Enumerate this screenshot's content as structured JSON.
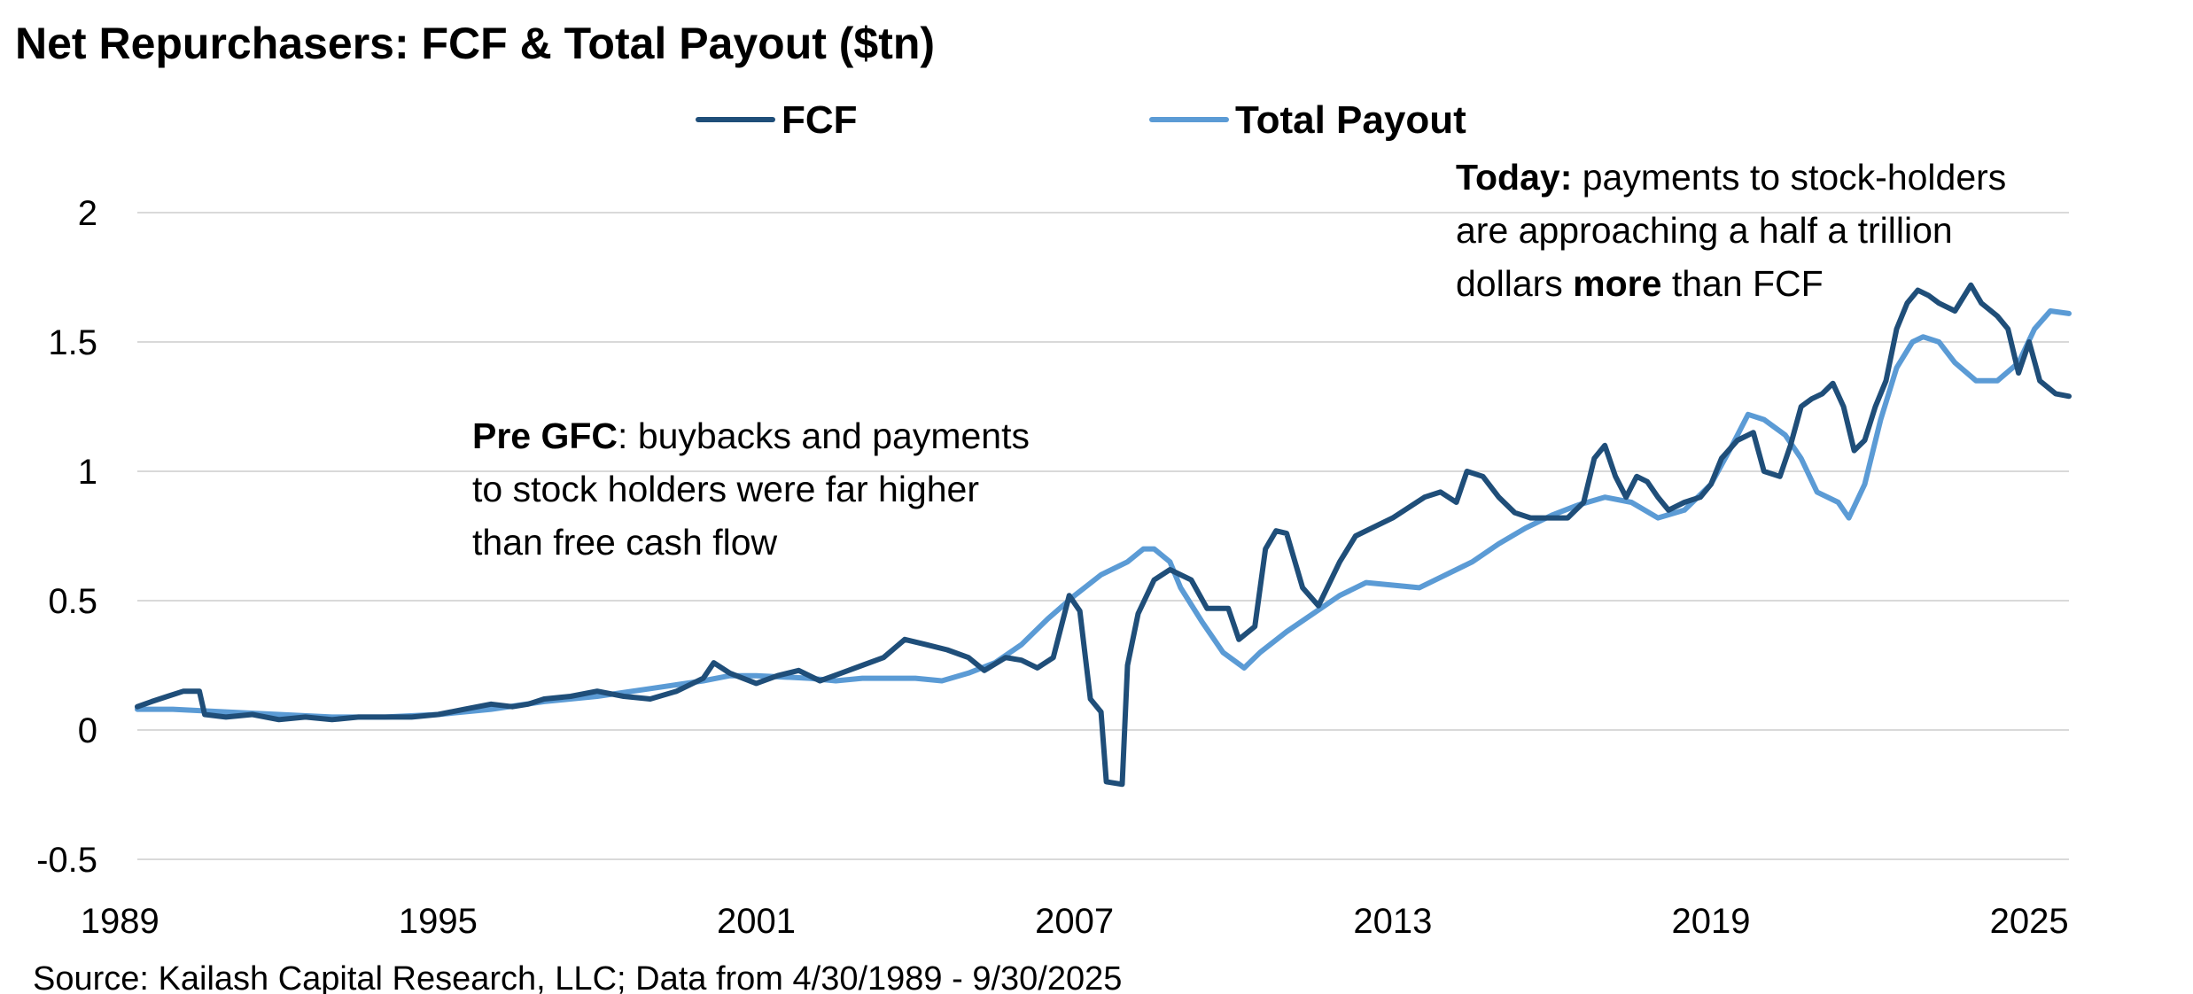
{
  "chart_data": {
    "type": "line",
    "title": "Net Repurchasers: FCF & Total Payout ($tn)",
    "source": "Source: Kailash Capital Research, LLC; Data from 4/30/1989 - 9/30/2025",
    "x_unit": "year",
    "xlim": [
      1989.33,
      2025.75
    ],
    "ylim": [
      -0.5,
      2
    ],
    "x_ticks": [
      "1989",
      "1995",
      "2001",
      "2007",
      "2013",
      "2019",
      "2025"
    ],
    "y_ticks": [
      "-0.5",
      "0",
      "0.5",
      "1",
      "1.5",
      "2"
    ],
    "grid": "horizontal",
    "legend_position": "top-center",
    "colors": {
      "fcf": "#1f4e79",
      "payout": "#5b9bd5",
      "grid": "#d9d9d9"
    },
    "annotations": [
      {
        "id": "pre-gfc",
        "runs": [
          [
            {
              "text": "Pre GFC",
              "bold": true
            },
            {
              "text": ": buybacks and payments",
              "bold": false
            }
          ],
          [
            {
              "text": "to stock holders were far higher",
              "bold": false
            }
          ],
          [
            {
              "text": "than free cash flow",
              "bold": false
            }
          ]
        ]
      },
      {
        "id": "today",
        "runs": [
          [
            {
              "text": "Today:",
              "bold": true
            },
            {
              "text": " payments to stock-holders",
              "bold": false
            }
          ],
          [
            {
              "text": "are approaching  a half a trillion",
              "bold": false
            }
          ],
          [
            {
              "text": "dollars ",
              "bold": false
            },
            {
              "text": "more",
              "bold": true
            },
            {
              "text": " than FCF",
              "bold": false
            }
          ]
        ]
      }
    ],
    "series": [
      {
        "name": "FCF",
        "color": "#1f4e79",
        "points": [
          [
            1989.33,
            0.09
          ],
          [
            1989.6,
            0.11
          ],
          [
            1989.9,
            0.13
          ],
          [
            1990.2,
            0.15
          ],
          [
            1990.5,
            0.15
          ],
          [
            1990.6,
            0.06
          ],
          [
            1991.0,
            0.05
          ],
          [
            1991.5,
            0.06
          ],
          [
            1992.0,
            0.04
          ],
          [
            1992.5,
            0.05
          ],
          [
            1993.0,
            0.04
          ],
          [
            1993.5,
            0.05
          ],
          [
            1994.0,
            0.05
          ],
          [
            1994.5,
            0.05
          ],
          [
            1995.0,
            0.06
          ],
          [
            1995.5,
            0.08
          ],
          [
            1996.0,
            0.1
          ],
          [
            1996.4,
            0.09
          ],
          [
            1996.7,
            0.1
          ],
          [
            1997.0,
            0.12
          ],
          [
            1997.5,
            0.13
          ],
          [
            1998.0,
            0.15
          ],
          [
            1998.5,
            0.13
          ],
          [
            1999.0,
            0.12
          ],
          [
            1999.5,
            0.15
          ],
          [
            2000.0,
            0.2
          ],
          [
            2000.2,
            0.26
          ],
          [
            2000.5,
            0.22
          ],
          [
            2001.0,
            0.18
          ],
          [
            2001.4,
            0.21
          ],
          [
            2001.8,
            0.23
          ],
          [
            2002.2,
            0.19
          ],
          [
            2002.6,
            0.22
          ],
          [
            2003.0,
            0.25
          ],
          [
            2003.4,
            0.28
          ],
          [
            2003.8,
            0.35
          ],
          [
            2004.2,
            0.33
          ],
          [
            2004.6,
            0.31
          ],
          [
            2005.0,
            0.28
          ],
          [
            2005.3,
            0.23
          ],
          [
            2005.7,
            0.28
          ],
          [
            2006.0,
            0.27
          ],
          [
            2006.3,
            0.24
          ],
          [
            2006.6,
            0.28
          ],
          [
            2006.9,
            0.52
          ],
          [
            2007.1,
            0.46
          ],
          [
            2007.3,
            0.12
          ],
          [
            2007.5,
            0.07
          ],
          [
            2007.6,
            -0.2
          ],
          [
            2007.9,
            -0.21
          ],
          [
            2008.0,
            0.25
          ],
          [
            2008.2,
            0.45
          ],
          [
            2008.5,
            0.58
          ],
          [
            2008.8,
            0.62
          ],
          [
            2009.2,
            0.58
          ],
          [
            2009.5,
            0.47
          ],
          [
            2009.9,
            0.47
          ],
          [
            2010.1,
            0.35
          ],
          [
            2010.4,
            0.4
          ],
          [
            2010.6,
            0.7
          ],
          [
            2010.8,
            0.77
          ],
          [
            2011.0,
            0.76
          ],
          [
            2011.3,
            0.55
          ],
          [
            2011.6,
            0.48
          ],
          [
            2012.0,
            0.65
          ],
          [
            2012.3,
            0.75
          ],
          [
            2012.6,
            0.78
          ],
          [
            2013.0,
            0.82
          ],
          [
            2013.3,
            0.86
          ],
          [
            2013.6,
            0.9
          ],
          [
            2013.9,
            0.92
          ],
          [
            2014.2,
            0.88
          ],
          [
            2014.4,
            1.0
          ],
          [
            2014.7,
            0.98
          ],
          [
            2015.0,
            0.9
          ],
          [
            2015.3,
            0.84
          ],
          [
            2015.6,
            0.82
          ],
          [
            2016.0,
            0.82
          ],
          [
            2016.3,
            0.82
          ],
          [
            2016.6,
            0.88
          ],
          [
            2016.8,
            1.05
          ],
          [
            2017.0,
            1.1
          ],
          [
            2017.2,
            0.98
          ],
          [
            2017.4,
            0.9
          ],
          [
            2017.6,
            0.98
          ],
          [
            2017.8,
            0.96
          ],
          [
            2018.0,
            0.9
          ],
          [
            2018.2,
            0.85
          ],
          [
            2018.5,
            0.88
          ],
          [
            2018.8,
            0.9
          ],
          [
            2019.0,
            0.95
          ],
          [
            2019.2,
            1.05
          ],
          [
            2019.5,
            1.12
          ],
          [
            2019.8,
            1.15
          ],
          [
            2020.0,
            1.0
          ],
          [
            2020.3,
            0.98
          ],
          [
            2020.5,
            1.1
          ],
          [
            2020.7,
            1.25
          ],
          [
            2020.9,
            1.28
          ],
          [
            2021.1,
            1.3
          ],
          [
            2021.3,
            1.34
          ],
          [
            2021.5,
            1.25
          ],
          [
            2021.7,
            1.08
          ],
          [
            2021.9,
            1.12
          ],
          [
            2022.1,
            1.25
          ],
          [
            2022.3,
            1.35
          ],
          [
            2022.5,
            1.55
          ],
          [
            2022.7,
            1.65
          ],
          [
            2022.9,
            1.7
          ],
          [
            2023.1,
            1.68
          ],
          [
            2023.3,
            1.65
          ],
          [
            2023.6,
            1.62
          ],
          [
            2023.9,
            1.72
          ],
          [
            2024.1,
            1.65
          ],
          [
            2024.4,
            1.6
          ],
          [
            2024.6,
            1.55
          ],
          [
            2024.8,
            1.38
          ],
          [
            2025.0,
            1.5
          ],
          [
            2025.2,
            1.35
          ],
          [
            2025.5,
            1.3
          ],
          [
            2025.75,
            1.29
          ]
        ]
      },
      {
        "name": "Total Payout",
        "color": "#5b9bd5",
        "points": [
          [
            1989.33,
            0.08
          ],
          [
            1990.0,
            0.08
          ],
          [
            1991.0,
            0.07
          ],
          [
            1992.0,
            0.06
          ],
          [
            1993.0,
            0.05
          ],
          [
            1994.0,
            0.05
          ],
          [
            1995.0,
            0.06
          ],
          [
            1996.0,
            0.08
          ],
          [
            1997.0,
            0.11
          ],
          [
            1998.0,
            0.13
          ],
          [
            1999.0,
            0.16
          ],
          [
            2000.0,
            0.19
          ],
          [
            2000.5,
            0.21
          ],
          [
            2001.0,
            0.21
          ],
          [
            2002.0,
            0.2
          ],
          [
            2002.5,
            0.19
          ],
          [
            2003.0,
            0.2
          ],
          [
            2004.0,
            0.2
          ],
          [
            2004.5,
            0.19
          ],
          [
            2005.0,
            0.22
          ],
          [
            2005.5,
            0.26
          ],
          [
            2006.0,
            0.33
          ],
          [
            2006.5,
            0.43
          ],
          [
            2007.0,
            0.52
          ],
          [
            2007.5,
            0.6
          ],
          [
            2008.0,
            0.65
          ],
          [
            2008.3,
            0.7
          ],
          [
            2008.5,
            0.7
          ],
          [
            2008.8,
            0.65
          ],
          [
            2009.0,
            0.55
          ],
          [
            2009.4,
            0.42
          ],
          [
            2009.8,
            0.3
          ],
          [
            2010.2,
            0.24
          ],
          [
            2010.5,
            0.3
          ],
          [
            2011.0,
            0.38
          ],
          [
            2011.5,
            0.45
          ],
          [
            2012.0,
            0.52
          ],
          [
            2012.5,
            0.57
          ],
          [
            2013.0,
            0.56
          ],
          [
            2013.5,
            0.55
          ],
          [
            2014.0,
            0.6
          ],
          [
            2014.5,
            0.65
          ],
          [
            2015.0,
            0.72
          ],
          [
            2015.5,
            0.78
          ],
          [
            2016.0,
            0.83
          ],
          [
            2016.5,
            0.87
          ],
          [
            2017.0,
            0.9
          ],
          [
            2017.5,
            0.88
          ],
          [
            2018.0,
            0.82
          ],
          [
            2018.5,
            0.85
          ],
          [
            2019.0,
            0.95
          ],
          [
            2019.4,
            1.1
          ],
          [
            2019.7,
            1.22
          ],
          [
            2020.0,
            1.2
          ],
          [
            2020.4,
            1.14
          ],
          [
            2020.7,
            1.05
          ],
          [
            2021.0,
            0.92
          ],
          [
            2021.4,
            0.88
          ],
          [
            2021.6,
            0.82
          ],
          [
            2021.9,
            0.95
          ],
          [
            2022.2,
            1.2
          ],
          [
            2022.5,
            1.4
          ],
          [
            2022.8,
            1.5
          ],
          [
            2023.0,
            1.52
          ],
          [
            2023.3,
            1.5
          ],
          [
            2023.6,
            1.42
          ],
          [
            2024.0,
            1.35
          ],
          [
            2024.4,
            1.35
          ],
          [
            2024.8,
            1.42
          ],
          [
            2025.1,
            1.55
          ],
          [
            2025.4,
            1.62
          ],
          [
            2025.75,
            1.61
          ]
        ]
      }
    ]
  }
}
